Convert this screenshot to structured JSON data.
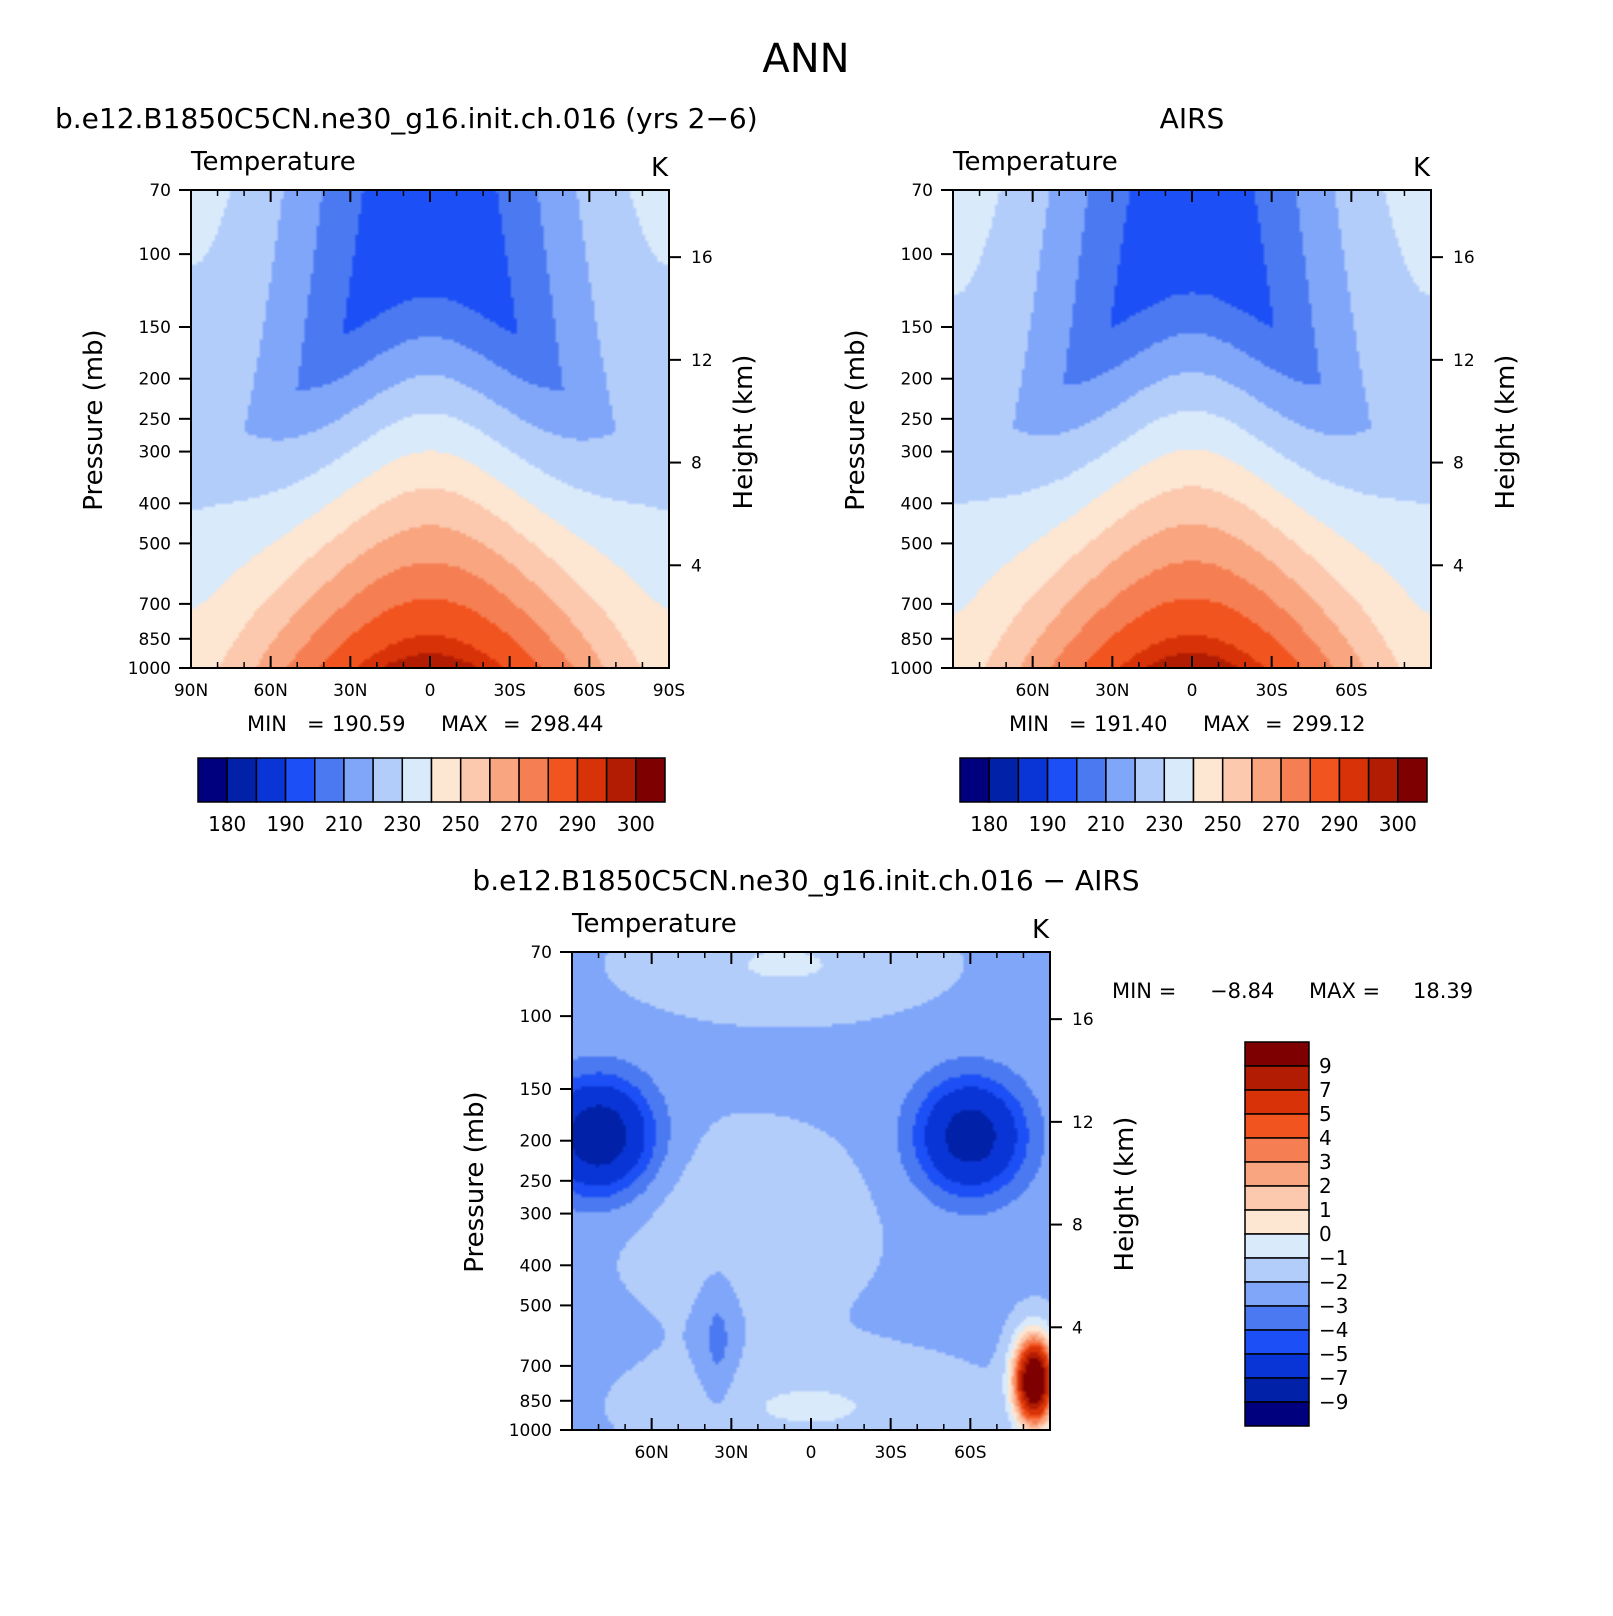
{
  "figure_title": "ANN",
  "colors": {
    "temp_palette": [
      "#00007f",
      "#0021a8",
      "#0a35d6",
      "#1c4ff5",
      "#4a79f2",
      "#7fa6f9",
      "#b3cdfb",
      "#d9eafb",
      "#fde6d2",
      "#fcc8ae",
      "#f9a57f",
      "#f67e53",
      "#f2541f",
      "#d83308",
      "#b11c02",
      "#7f0000"
    ],
    "diff_palette": [
      "#00007f",
      "#0021a8",
      "#0a35d6",
      "#1c4ff5",
      "#4a79f2",
      "#7fa6f9",
      "#b3cdfb",
      "#d9eafb",
      "#fde6d2",
      "#fcc8ae",
      "#f9a57f",
      "#f67e53",
      "#f2541f",
      "#d83308",
      "#b11c02",
      "#7f0000"
    ]
  },
  "chart_data": [
    {
      "id": "model",
      "type": "heatmap",
      "title": "b.e12.B1850C5CN.ne30_g16.init.ch.016 (yrs 2−6)",
      "variable_label": "Temperature",
      "units": "K",
      "ylabel": "Pressure (mb)",
      "right_ylabel": "Height (km)",
      "x_ticks": [
        "90N",
        "60N",
        "30N",
        "0",
        "30S",
        "60S",
        "90S"
      ],
      "x_values": [
        90,
        60,
        30,
        0,
        -30,
        -60,
        -90
      ],
      "xlim": [
        90,
        -90
      ],
      "y_ticks": [
        "70",
        "100",
        "150",
        "200",
        "250",
        "300",
        "400",
        "500",
        "700",
        "850",
        "1000"
      ],
      "y_values": [
        70,
        100,
        150,
        200,
        250,
        300,
        400,
        500,
        700,
        850,
        1000
      ],
      "ylim": [
        70,
        1000
      ],
      "right_ticks": [
        "16",
        "12",
        "8",
        "4"
      ],
      "right_values": [
        16,
        12,
        8,
        4
      ],
      "min_label": "MIN",
      "min": "190.59",
      "max_label": "MAX",
      "max": "298.44",
      "levels": [
        180,
        185,
        190,
        200,
        210,
        220,
        230,
        240,
        250,
        260,
        270,
        280,
        290,
        295,
        300
      ],
      "colorbar_labels": [
        "180",
        "190",
        "210",
        "230",
        "250",
        "270",
        "290",
        "300"
      ],
      "field": {
        "tropo_min_k": 190,
        "surface_eq_k": 299,
        "surface_pole_k": 246
      }
    },
    {
      "id": "obs",
      "type": "heatmap",
      "title": "AIRS",
      "variable_label": "Temperature",
      "units": "K",
      "ylabel": "Pressure (mb)",
      "right_ylabel": "Height (km)",
      "x_ticks": [
        "60N",
        "30N",
        "0",
        "30S",
        "60S"
      ],
      "x_values": [
        60,
        30,
        0,
        -30,
        -60
      ],
      "xlim": [
        90,
        -90
      ],
      "y_ticks": [
        "70",
        "100",
        "150",
        "200",
        "250",
        "300",
        "400",
        "500",
        "700",
        "850",
        "1000"
      ],
      "y_values": [
        70,
        100,
        150,
        200,
        250,
        300,
        400,
        500,
        700,
        850,
        1000
      ],
      "ylim": [
        70,
        1000
      ],
      "right_ticks": [
        "16",
        "12",
        "8",
        "4"
      ],
      "right_values": [
        16,
        12,
        8,
        4
      ],
      "min_label": "MIN",
      "min": "191.40",
      "max_label": "MAX",
      "max": "299.12",
      "levels": [
        180,
        185,
        190,
        200,
        210,
        220,
        230,
        240,
        250,
        260,
        270,
        280,
        290,
        295,
        300
      ],
      "colorbar_labels": [
        "180",
        "190",
        "210",
        "230",
        "250",
        "270",
        "290",
        "300"
      ],
      "field": {
        "tropo_min_k": 191,
        "surface_eq_k": 299,
        "surface_pole_k": 245
      }
    },
    {
      "id": "diff",
      "type": "heatmap",
      "title": "b.e12.B1850C5CN.ne30_g16.init.ch.016 − AIRS",
      "variable_label": "Temperature",
      "units": "K",
      "ylabel": "Pressure (mb)",
      "right_ylabel": "Height (km)",
      "x_ticks": [
        "60N",
        "30N",
        "0",
        "30S",
        "60S"
      ],
      "x_values": [
        60,
        30,
        0,
        -30,
        -60
      ],
      "xlim": [
        90,
        -90
      ],
      "y_ticks": [
        "70",
        "100",
        "150",
        "200",
        "250",
        "300",
        "400",
        "500",
        "700",
        "850",
        "1000"
      ],
      "y_values": [
        70,
        100,
        150,
        200,
        250,
        300,
        400,
        500,
        700,
        850,
        1000
      ],
      "ylim": [
        70,
        1000
      ],
      "right_ticks": [
        "16",
        "12",
        "8",
        "4"
      ],
      "right_values": [
        16,
        12,
        8,
        4
      ],
      "min_label": "MIN =",
      "min": "−8.84",
      "max_label": "MAX =",
      "max": "18.39",
      "levels": [
        -9,
        -7,
        -5,
        -4,
        -3,
        -2,
        -1,
        0,
        1,
        2,
        3,
        4,
        5,
        7,
        9
      ],
      "colorbar_labels": [
        "9",
        "7",
        "5",
        "4",
        "3",
        "2",
        "1",
        "0",
        "−1",
        "−2",
        "−3",
        "−4",
        "−5",
        "−7",
        "−9"
      ]
    }
  ]
}
